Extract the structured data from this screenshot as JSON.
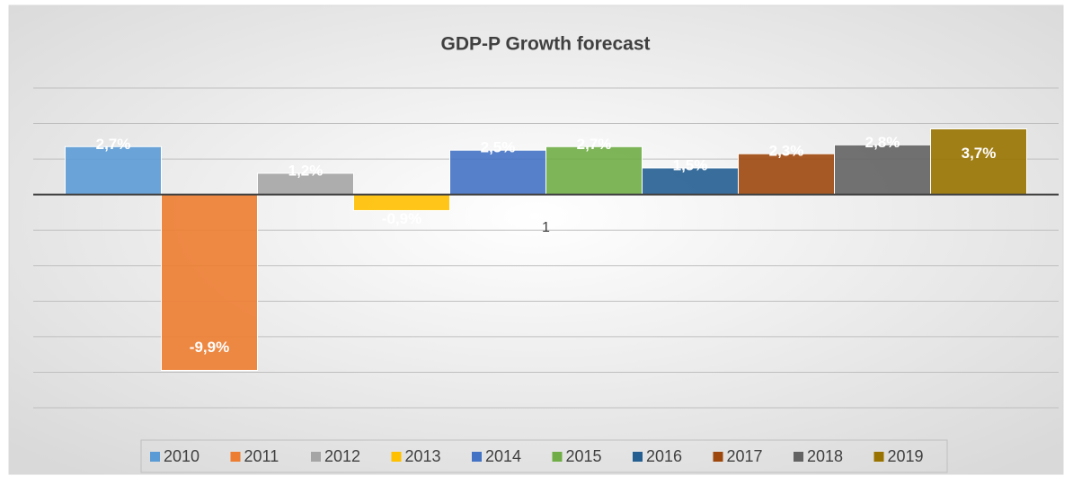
{
  "chart_data": {
    "type": "bar",
    "title": "GDP-P Growth forecast",
    "categories": [
      "1"
    ],
    "series": [
      {
        "name": "2010",
        "color": "#5b9bd5",
        "values": [
          2.7
        ],
        "value_labels": [
          "2,7%"
        ]
      },
      {
        "name": "2011",
        "color": "#ed7d31",
        "values": [
          -9.9
        ],
        "value_labels": [
          "-9,9%"
        ]
      },
      {
        "name": "2012",
        "color": "#a5a5a5",
        "values": [
          1.2
        ],
        "value_labels": [
          "1,2%"
        ]
      },
      {
        "name": "2013",
        "color": "#ffc000",
        "values": [
          -0.9
        ],
        "value_labels": [
          "-0,9%"
        ]
      },
      {
        "name": "2014",
        "color": "#4472c4",
        "values": [
          2.5
        ],
        "value_labels": [
          "2,5%"
        ]
      },
      {
        "name": "2015",
        "color": "#70ad47",
        "values": [
          2.7
        ],
        "value_labels": [
          "2,7%"
        ]
      },
      {
        "name": "2016",
        "color": "#255e91",
        "values": [
          1.5
        ],
        "value_labels": [
          "1,5%"
        ]
      },
      {
        "name": "2017",
        "color": "#9e480e",
        "values": [
          2.3
        ],
        "value_labels": [
          "2,3%"
        ]
      },
      {
        "name": "2018",
        "color": "#636363",
        "values": [
          2.8
        ],
        "value_labels": [
          "2,8%"
        ]
      },
      {
        "name": "2019",
        "color": "#997300",
        "values": [
          3.7
        ],
        "value_labels": [
          "3,7%"
        ]
      }
    ],
    "ylim": [
      -12,
      6
    ],
    "yticks": [
      -12,
      -10,
      -8,
      -6,
      -4,
      -2,
      0,
      2,
      4,
      6
    ],
    "grid": true,
    "legend": "bottom"
  }
}
